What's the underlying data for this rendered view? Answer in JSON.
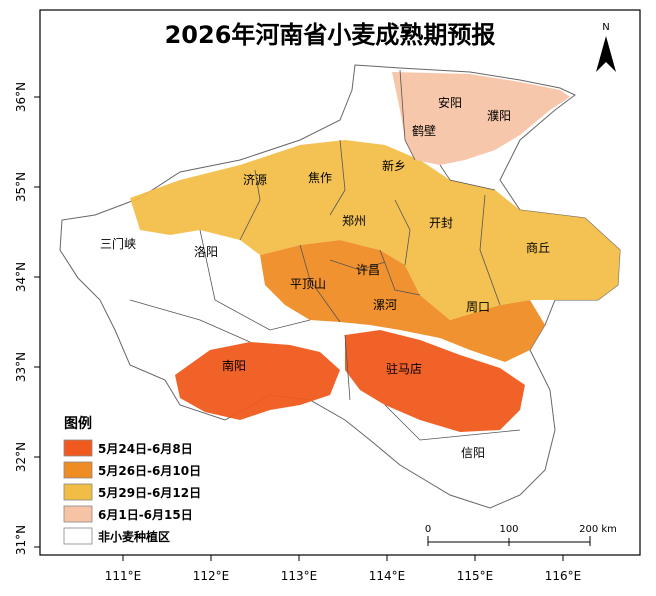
{
  "title": "2026年河南省小麦成熟期预报",
  "north_label": "N",
  "x_ticks": [
    "111°E",
    "112°E",
    "113°E",
    "114°E",
    "115°E",
    "116°E"
  ],
  "y_ticks": [
    "36°N",
    "35°N",
    "34°N",
    "33°N",
    "32°N",
    "31°N"
  ],
  "cities": [
    {
      "name": "安阳"
    },
    {
      "name": "濮阳"
    },
    {
      "name": "鹤壁"
    },
    {
      "name": "新乡"
    },
    {
      "name": "济源"
    },
    {
      "name": "焦作"
    },
    {
      "name": "郑州"
    },
    {
      "name": "开封"
    },
    {
      "name": "商丘"
    },
    {
      "name": "三门峡"
    },
    {
      "name": "洛阳"
    },
    {
      "name": "许昌"
    },
    {
      "name": "平顶山"
    },
    {
      "name": "漯河"
    },
    {
      "name": "周口"
    },
    {
      "name": "南阳"
    },
    {
      "name": "驻马店"
    },
    {
      "name": "信阳"
    }
  ],
  "legend": {
    "title": "图例",
    "items": [
      {
        "label": "5月24日-6月8日",
        "color": "#f05a1e"
      },
      {
        "label": "5月26日-6月10日",
        "color": "#ef8c24"
      },
      {
        "label": "5月29日-6月12日",
        "color": "#f2bd44"
      },
      {
        "label": "6月1日-6月15日",
        "color": "#f6c4a5"
      },
      {
        "label": "非小麦种植区",
        "color": "#ffffff"
      }
    ]
  },
  "scale_bar": {
    "labels": [
      "0",
      "100",
      "200 km"
    ]
  }
}
